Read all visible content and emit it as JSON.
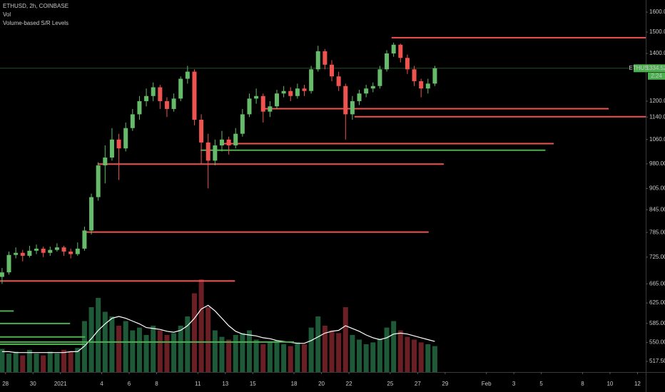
{
  "chart_data": {
    "type": "candlestick",
    "title": "ETHUSD, 2h, COINBASE",
    "indicators": [
      "Vol",
      "Volume-based S/R Levels"
    ],
    "symbol_tag": "ETHUSD",
    "last_price": 1334.52,
    "countdown": "2:24",
    "log_scale": true,
    "ylim": [
      500,
      1664
    ],
    "yticks": [
      {
        "value": 1600,
        "label": "1600.00"
      },
      {
        "value": 1500,
        "label": "1500.00"
      },
      {
        "value": 1400,
        "label": "1400.00"
      },
      {
        "value": 1200,
        "label": "1200.00"
      },
      {
        "value": 1140,
        "label": "1140.00"
      },
      {
        "value": 1060,
        "label": "1060.00"
      },
      {
        "value": 980,
        "label": "980.00"
      },
      {
        "value": 905,
        "label": "905.00"
      },
      {
        "value": 845,
        "label": "845.00"
      },
      {
        "value": 785,
        "label": "785.00"
      },
      {
        "value": 725,
        "label": "725.00"
      },
      {
        "value": 665,
        "label": "665.00"
      },
      {
        "value": 625,
        "label": "625.00"
      },
      {
        "value": 585,
        "label": "585.00"
      },
      {
        "value": 550,
        "label": "550.00"
      },
      {
        "value": 517.5,
        "label": "517.50"
      }
    ],
    "xlim": [
      -0.4,
      46.6
    ],
    "xticks": [
      {
        "value": 0,
        "label": "28"
      },
      {
        "value": 2,
        "label": "30"
      },
      {
        "value": 4,
        "label": "2021"
      },
      {
        "value": 7,
        "label": "4"
      },
      {
        "value": 9,
        "label": "6"
      },
      {
        "value": 11,
        "label": "8"
      },
      {
        "value": 14,
        "label": "11"
      },
      {
        "value": 16,
        "label": "13"
      },
      {
        "value": 18,
        "label": "15"
      },
      {
        "value": 21,
        "label": "18"
      },
      {
        "value": 23,
        "label": "20"
      },
      {
        "value": 25,
        "label": "22"
      },
      {
        "value": 28,
        "label": "25"
      },
      {
        "value": 30,
        "label": "27"
      },
      {
        "value": 32,
        "label": "29"
      },
      {
        "value": 35,
        "label": "Feb"
      },
      {
        "value": 37,
        "label": "3"
      },
      {
        "value": 39,
        "label": "5"
      },
      {
        "value": 42,
        "label": "8"
      },
      {
        "value": 44,
        "label": "10"
      },
      {
        "value": 46,
        "label": "12"
      }
    ],
    "x": [
      -0.25,
      0.25,
      0.75,
      1.25,
      1.75,
      2.25,
      2.75,
      3.25,
      3.75,
      4.25,
      4.75,
      5.25,
      5.75,
      6.25,
      6.75,
      7.25,
      7.75,
      8.25,
      8.75,
      9.25,
      9.75,
      10.25,
      10.75,
      11.25,
      11.75,
      12.25,
      12.75,
      13.25,
      13.75,
      14.25,
      14.75,
      15.25,
      15.75,
      16.25,
      16.75,
      17.25,
      17.75,
      18.25,
      18.75,
      19.25,
      19.75,
      20.25,
      20.75,
      21.25,
      21.75,
      22.25,
      22.75,
      23.25,
      23.75,
      24.25,
      24.75,
      25.25,
      25.75,
      26.25,
      26.75,
      27.25,
      27.75,
      28.25,
      28.75,
      29.25,
      29.75,
      30.25,
      30.75,
      31.25
    ],
    "ohlc": [
      [
        680,
        700,
        665,
        690
      ],
      [
        690,
        738,
        685,
        730
      ],
      [
        730,
        748,
        722,
        735
      ],
      [
        735,
        742,
        715,
        728
      ],
      [
        728,
        752,
        724,
        740
      ],
      [
        740,
        755,
        732,
        745
      ],
      [
        745,
        750,
        725,
        735
      ],
      [
        735,
        750,
        728,
        742
      ],
      [
        742,
        758,
        738,
        748
      ],
      [
        748,
        752,
        728,
        738
      ],
      [
        738,
        745,
        722,
        732
      ],
      [
        732,
        760,
        728,
        745
      ],
      [
        745,
        800,
        740,
        790
      ],
      [
        790,
        890,
        780,
        880
      ],
      [
        880,
        985,
        870,
        975
      ],
      [
        975,
        1040,
        920,
        1000
      ],
      [
        1000,
        1100,
        990,
        1060
      ],
      [
        1060,
        1080,
        930,
        1030
      ],
      [
        1030,
        1120,
        1020,
        1100
      ],
      [
        1100,
        1170,
        1090,
        1150
      ],
      [
        1150,
        1220,
        1130,
        1200
      ],
      [
        1200,
        1250,
        1180,
        1220
      ],
      [
        1220,
        1275,
        1200,
        1255
      ],
      [
        1255,
        1265,
        1170,
        1200
      ],
      [
        1200,
        1215,
        1140,
        1170
      ],
      [
        1170,
        1230,
        1160,
        1210
      ],
      [
        1210,
        1300,
        1200,
        1290
      ],
      [
        1290,
        1345,
        1270,
        1320
      ],
      [
        1320,
        1330,
        1110,
        1130
      ],
      [
        1130,
        1150,
        980,
        1050
      ],
      [
        1050,
        1080,
        905,
        990
      ],
      [
        990,
        1060,
        975,
        1040
      ],
      [
        1040,
        1090,
        1020,
        1060
      ],
      [
        1060,
        1070,
        1010,
        1040
      ],
      [
        1040,
        1100,
        1030,
        1080
      ],
      [
        1080,
        1170,
        1070,
        1150
      ],
      [
        1150,
        1230,
        1140,
        1210
      ],
      [
        1210,
        1250,
        1190,
        1220
      ],
      [
        1220,
        1230,
        1120,
        1160
      ],
      [
        1160,
        1200,
        1140,
        1180
      ],
      [
        1180,
        1245,
        1170,
        1230
      ],
      [
        1230,
        1260,
        1215,
        1240
      ],
      [
        1240,
        1255,
        1200,
        1220
      ],
      [
        1220,
        1270,
        1210,
        1250
      ],
      [
        1250,
        1265,
        1220,
        1240
      ],
      [
        1240,
        1345,
        1230,
        1330
      ],
      [
        1330,
        1435,
        1320,
        1410
      ],
      [
        1410,
        1420,
        1330,
        1350
      ],
      [
        1350,
        1370,
        1280,
        1300
      ],
      [
        1300,
        1320,
        1240,
        1260
      ],
      [
        1260,
        1270,
        1060,
        1150
      ],
      [
        1150,
        1220,
        1130,
        1200
      ],
      [
        1200,
        1245,
        1185,
        1230
      ],
      [
        1230,
        1265,
        1215,
        1250
      ],
      [
        1250,
        1275,
        1235,
        1260
      ],
      [
        1260,
        1345,
        1250,
        1330
      ],
      [
        1330,
        1415,
        1320,
        1400
      ],
      [
        1400,
        1450,
        1385,
        1440
      ],
      [
        1440,
        1445,
        1360,
        1380
      ],
      [
        1380,
        1395,
        1310,
        1330
      ],
      [
        1330,
        1345,
        1260,
        1280
      ],
      [
        1280,
        1290,
        1215,
        1250
      ],
      [
        1250,
        1290,
        1230,
        1270
      ],
      [
        1270,
        1345,
        1260,
        1334.52
      ]
    ],
    "up_color": "#66bb6a",
    "down_color": "#ef5350",
    "volume": [
      25,
      20,
      22,
      18,
      24,
      20,
      18,
      22,
      20,
      24,
      22,
      26,
      55,
      70,
      80,
      65,
      60,
      50,
      55,
      45,
      48,
      40,
      50,
      45,
      40,
      42,
      50,
      60,
      85,
      100,
      70,
      45,
      38,
      35,
      40,
      42,
      45,
      35,
      30,
      32,
      34,
      30,
      28,
      32,
      30,
      48,
      60,
      50,
      45,
      42,
      70,
      40,
      35,
      30,
      32,
      36,
      48,
      55,
      45,
      38,
      35,
      32,
      30,
      28
    ],
    "volume_ma": [
      22,
      22,
      21,
      21,
      21,
      21,
      21,
      21,
      21,
      21,
      22,
      22,
      28,
      36,
      45,
      52,
      58,
      60,
      58,
      55,
      52,
      48,
      47,
      46,
      44,
      43,
      45,
      50,
      58,
      68,
      72,
      66,
      58,
      50,
      44,
      41,
      40,
      39,
      37,
      36,
      34,
      33,
      32,
      31,
      31,
      34,
      38,
      42,
      44,
      45,
      50,
      47,
      44,
      40,
      37,
      35,
      37,
      41,
      42,
      41,
      39,
      37,
      35,
      33
    ],
    "up_volume_color": "#1e5a37",
    "down_volume_color": "#6a1f25",
    "volume_ma_color": "#ffffff",
    "last_price_color": "#4caf50",
    "levels": [
      {
        "price": 1473,
        "from": 28.1,
        "to": 46.6,
        "color": "#f05350"
      },
      {
        "price": 1171,
        "from": 18.8,
        "to": 43.9,
        "color": "#f05350"
      },
      {
        "price": 1141,
        "from": 25.4,
        "to": 46.6,
        "color": "#f05350"
      },
      {
        "price": 1046,
        "from": 15.6,
        "to": 39.9,
        "color": "#f05350"
      },
      {
        "price": 1024,
        "from": 14.2,
        "to": 39.3,
        "color": "#4caf50"
      },
      {
        "price": 979,
        "from": 6.7,
        "to": 31.9,
        "color": "#f05350"
      },
      {
        "price": 786,
        "from": 5.7,
        "to": 30.8,
        "color": "#f05350"
      },
      {
        "price": 671,
        "from": -0.4,
        "to": 16.7,
        "color": "#f05350"
      },
      {
        "price": 609,
        "from": -0.4,
        "to": 0.6,
        "color": "#4caf50"
      },
      {
        "price": 585,
        "from": -0.4,
        "to": 4.7,
        "color": "#4caf50"
      },
      {
        "price": 560,
        "from": -0.4,
        "to": 5.8,
        "color": "#4caf50"
      },
      {
        "price": 551,
        "from": -0.4,
        "to": 21.0,
        "color": "#4caf50"
      },
      {
        "price": 547,
        "from": -0.4,
        "to": 5.8,
        "color": "#4caf50"
      }
    ]
  }
}
